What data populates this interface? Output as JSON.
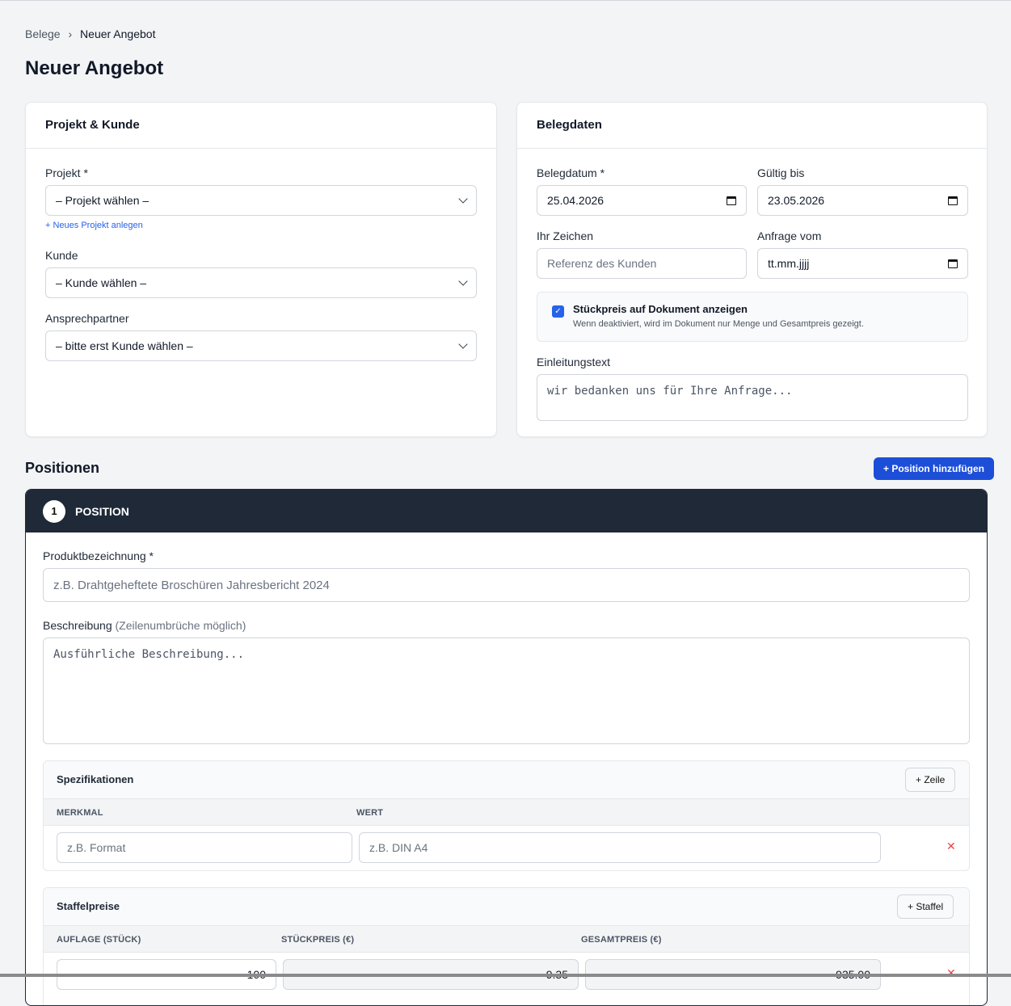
{
  "breadcrumb": {
    "parent": "Belege",
    "separator": "›",
    "current": "Neuer Angebot"
  },
  "page_title": "Neuer Angebot",
  "projekt_kunde": {
    "title": "Projekt & Kunde",
    "projekt_label": "Projekt *",
    "projekt_value": "– Projekt wählen –",
    "new_project_link": "+ Neues Projekt anlegen",
    "kunde_label": "Kunde",
    "kunde_value": "– Kunde wählen –",
    "ansprechpartner_label": "Ansprechpartner",
    "ansprechpartner_value": "– bitte erst Kunde wählen –"
  },
  "belegdaten": {
    "title": "Belegdaten",
    "belegdatum_label": "Belegdatum *",
    "belegdatum_value": "25.04.2026",
    "gueltig_label": "Gültig bis",
    "gueltig_value": "23.05.2026",
    "ihr_zeichen_label": "Ihr Zeichen",
    "ihr_zeichen_placeholder": "Referenz des Kunden",
    "anfrage_label": "Anfrage vom",
    "anfrage_value": "tt.mm.jjjj",
    "checkbox_label": "Stückpreis auf Dokument anzeigen",
    "checkbox_checked": true,
    "checkbox_hint": "Wenn deaktiviert, wird im Dokument nur Menge und Gesamtpreis gezeigt.",
    "einleitung_label": "Einleitungstext",
    "einleitung_placeholder": "wir bedanken uns für Ihre Anfrage..."
  },
  "positionen": {
    "title": "Positionen",
    "add_button": "+ Position hinzufügen",
    "position": {
      "number": "1",
      "title": "POSITION",
      "produkt_label": "Produktbezeichnung *",
      "produkt_placeholder": "z.B. Drahtgeheftete Broschüren Jahresbericht 2024",
      "beschreibung_label": "Beschreibung",
      "beschreibung_hint": "(Zeilenumbrüche möglich)",
      "beschreibung_placeholder": "Ausführliche Beschreibung...",
      "spezifikationen": {
        "title": "Spezifikationen",
        "add_button": "+ Zeile",
        "columns": [
          "MERKMAL",
          "WERT"
        ],
        "rows": [
          {
            "merkmal_placeholder": "z.B. Format",
            "wert_placeholder": "z.B. DIN A4"
          }
        ]
      },
      "staffelpreise": {
        "title": "Staffelpreise",
        "add_button": "+ Staffel",
        "columns": [
          "AUFLAGE (STÜCK)",
          "STÜCKPREIS (€)",
          "GESAMTPREIS (€)"
        ],
        "rows": [
          {
            "auflage": "100",
            "stueckpreis": "9.35",
            "gesamtpreis": "935.00"
          }
        ]
      }
    }
  },
  "colors": {
    "primary": "#1d4ed8",
    "header_dark": "#1f2937",
    "delete": "#ef4444"
  }
}
